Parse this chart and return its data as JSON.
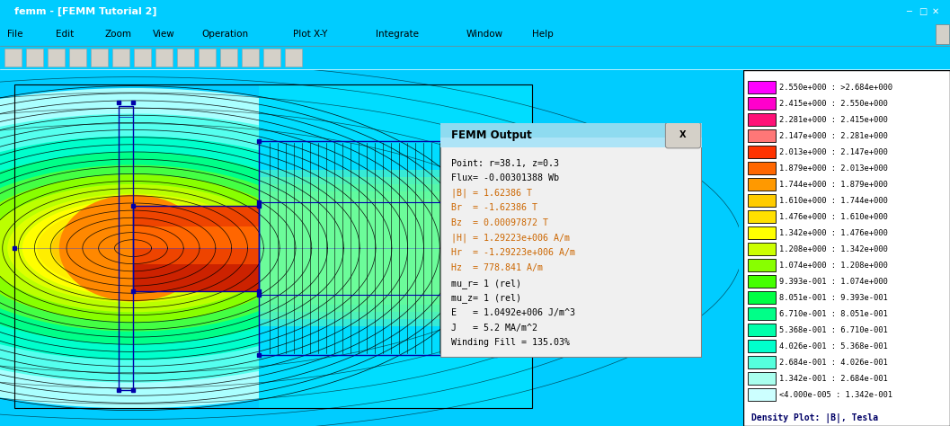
{
  "title": "femm - [FEMM Tutorial 2]",
  "window_bg": "#00CCFF",
  "titlebar_color": "#0A246A",
  "titlebar_text": "#FFFFFF",
  "menubar_color": "#ECE9D8",
  "toolbar_color": "#ECE9D8",
  "canvas_bg": "#00DDFF",
  "legend_bg": "#FFFFFF",
  "legend_border": "#000000",
  "legend_outer_bg": "#00CCFF",
  "legend_entries": [
    {
      "label": "2.550e+000 : >2.684e+000",
      "color": "#FF00FF"
    },
    {
      "label": "2.415e+000 : 2.550e+000",
      "color": "#FF00CC"
    },
    {
      "label": "2.281e+000 : 2.415e+000",
      "color": "#FF1177"
    },
    {
      "label": "2.147e+000 : 2.281e+000",
      "color": "#FF7777"
    },
    {
      "label": "2.013e+000 : 2.147e+000",
      "color": "#FF3300"
    },
    {
      "label": "1.879e+000 : 2.013e+000",
      "color": "#FF6600"
    },
    {
      "label": "1.744e+000 : 1.879e+000",
      "color": "#FF9900"
    },
    {
      "label": "1.610e+000 : 1.744e+000",
      "color": "#FFCC00"
    },
    {
      "label": "1.476e+000 : 1.610e+000",
      "color": "#FFE000"
    },
    {
      "label": "1.342e+000 : 1.476e+000",
      "color": "#FFFF00"
    },
    {
      "label": "1.208e+000 : 1.342e+000",
      "color": "#CCFF00"
    },
    {
      "label": "1.074e+000 : 1.208e+000",
      "color": "#88FF00"
    },
    {
      "label": "9.393e-001 : 1.074e+000",
      "color": "#44FF00"
    },
    {
      "label": "8.051e-001 : 9.393e-001",
      "color": "#00FF44"
    },
    {
      "label": "6.710e-001 : 8.051e-001",
      "color": "#00FF88"
    },
    {
      "label": "5.368e-001 : 6.710e-001",
      "color": "#00FFAA"
    },
    {
      "label": "4.026e-001 : 5.368e-001",
      "color": "#00FFCC"
    },
    {
      "label": "2.684e-001 : 4.026e-001",
      "color": "#55FFDD"
    },
    {
      "label": "1.342e-001 : 2.684e-001",
      "color": "#AAFFEE"
    },
    {
      "label": "<4.000e-005 : 1.342e-001",
      "color": "#CCFFFF"
    }
  ],
  "density_label": "Density Plot: |B|, Tesla",
  "femm_output_title": "FEMM Output",
  "femm_output_lines": [
    {
      "text": "Point: r=38.1, z=0.3",
      "color": "#000000"
    },
    {
      "text": "Flux= -0.00301388 Wb",
      "color": "#000000"
    },
    {
      "text": "|B| = 1.62386 T",
      "color": "#CC6600"
    },
    {
      "text": "Br  = -1.62386 T",
      "color": "#CC6600"
    },
    {
      "text": "Bz  = 0.00097872 T",
      "color": "#CC6600"
    },
    {
      "text": "|H| = 1.29223e+006 A/m",
      "color": "#CC6600"
    },
    {
      "text": "Hr  = -1.29223e+006 A/m",
      "color": "#CC6600"
    },
    {
      "text": "Hz  = 778.841 A/m",
      "color": "#CC6600"
    },
    {
      "text": "mu_r= 1 (rel)",
      "color": "#000000"
    },
    {
      "text": "mu_z= 1 (rel)",
      "color": "#000000"
    },
    {
      "text": "E   = 1.0492e+006 J/m^3",
      "color": "#000000"
    },
    {
      "text": "J   = 5.2 MA/m^2",
      "color": "#000000"
    },
    {
      "text": "Winding Fill = 135.03%",
      "color": "#000000"
    }
  ],
  "menu_items": [
    "File",
    "Edit",
    "Zoom",
    "View",
    "Operation",
    "Plot X-Y",
    "Integrate",
    "Window",
    "Help"
  ]
}
